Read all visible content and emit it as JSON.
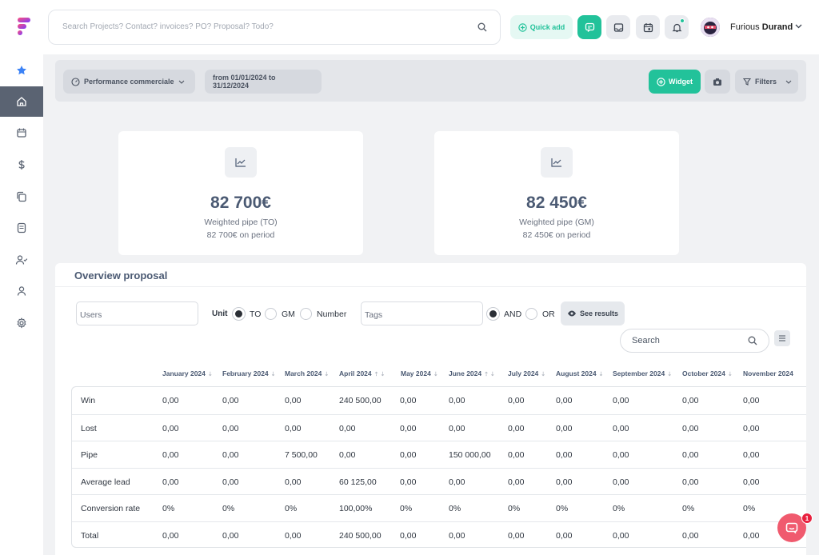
{
  "header": {
    "search_placeholder": "Search Projects? Contact? invoices? PO? Proposal? Todo?",
    "quick_add_label": "Quick add",
    "user_first": "Furious",
    "user_last": "Durand"
  },
  "toolbar": {
    "dashboard_label": "Performance commerciale",
    "date_range": "from 01/01/2024 to 31/12/2024",
    "widget_label": "Widget",
    "filters_label": "Filters"
  },
  "kpis": [
    {
      "value": "82 700€",
      "label": "Weighted pipe (TO)",
      "sub": "82 700€ on period"
    },
    {
      "value": "82 450€",
      "label": "Weighted pipe (GM)",
      "sub": "82 450€ on period"
    }
  ],
  "overview": {
    "title": "Overview proposal",
    "users_placeholder": "Users",
    "unit_label": "Unit",
    "unit_options": [
      "TO",
      "GM",
      "Number"
    ],
    "unit_selected": "TO",
    "tags_placeholder": "Tags",
    "logic_options": [
      "AND",
      "OR"
    ],
    "logic_selected": "AND",
    "see_results_label": "See results",
    "search_placeholder": "Search",
    "columns": [
      "January 2024",
      "February 2024",
      "March 2024",
      "April 2024",
      "May 2024",
      "June 2024",
      "July 2024",
      "August 2024",
      "September 2024",
      "October 2024",
      "November 2024"
    ],
    "rows": [
      {
        "label": "Win",
        "cells": [
          "0,00",
          "0,00",
          "0,00",
          "240 500,00",
          "0,00",
          "0,00",
          "0,00",
          "0,00",
          "0,00",
          "0,00",
          "0,00"
        ]
      },
      {
        "label": "Lost",
        "cells": [
          "0,00",
          "0,00",
          "0,00",
          "0,00",
          "0,00",
          "0,00",
          "0,00",
          "0,00",
          "0,00",
          "0,00",
          "0,00"
        ]
      },
      {
        "label": "Pipe",
        "cells": [
          "0,00",
          "0,00",
          "7 500,00",
          "0,00",
          "0,00",
          "150 000,00",
          "0,00",
          "0,00",
          "0,00",
          "0,00",
          "0,00"
        ]
      },
      {
        "label": "Average lead",
        "cells": [
          "0,00",
          "0,00",
          "0,00",
          "60 125,00",
          "0,00",
          "0,00",
          "0,00",
          "0,00",
          "0,00",
          "0,00",
          "0,00"
        ]
      },
      {
        "label": "Conversion rate",
        "cells": [
          "0%",
          "0%",
          "0%",
          "100,00%",
          "0%",
          "0%",
          "0%",
          "0%",
          "0%",
          "0%",
          "0%"
        ]
      },
      {
        "label": "Total",
        "cells": [
          "0,00",
          "0,00",
          "0,00",
          "240 500,00",
          "0,00",
          "0,00",
          "0,00",
          "0,00",
          "0,00",
          "0,00",
          "0,00"
        ]
      }
    ]
  },
  "chat_badge": "1",
  "colors": {
    "accent": "#22c29a",
    "sidebar_active": "#5a6372",
    "chat": "#f05a6e"
  }
}
